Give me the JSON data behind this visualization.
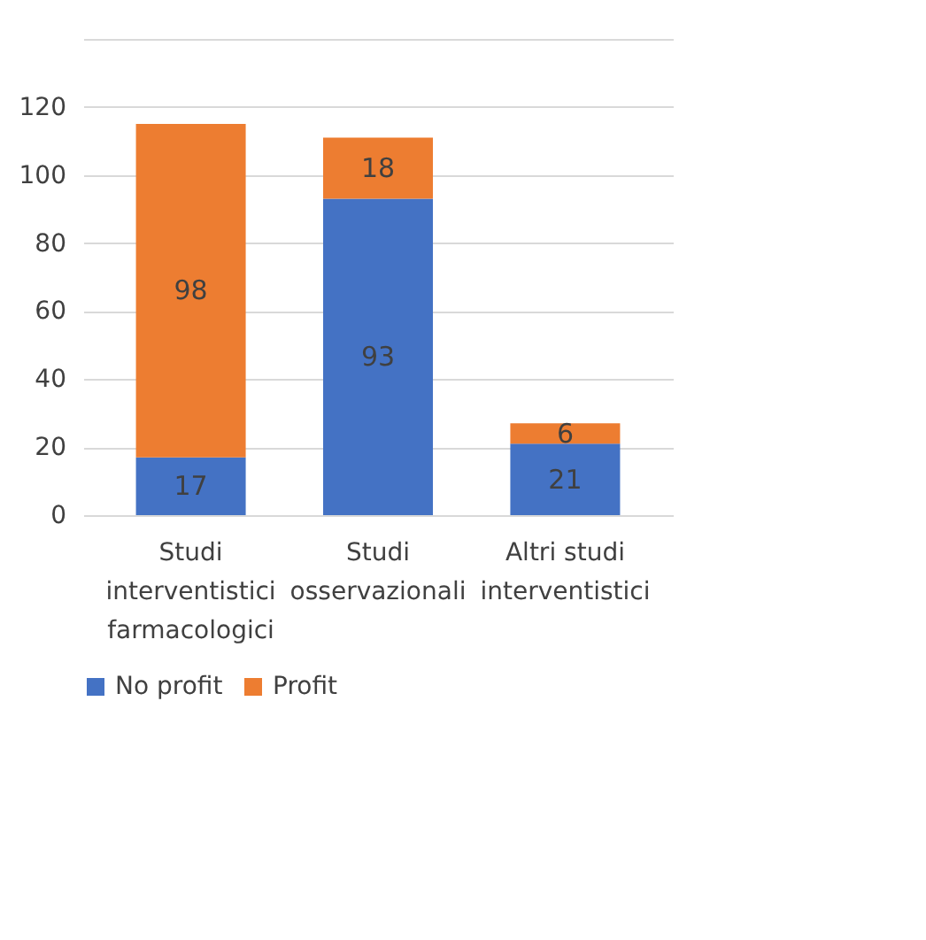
{
  "chart_data": {
    "type": "bar",
    "stacked": true,
    "categories": [
      "Studi\ninterventistici\nfarmacologici",
      "Studi\nosservazionali",
      "Altri studi\ninterventistici"
    ],
    "series": [
      {
        "name": "No profit",
        "color": "#4472c4",
        "values": [
          17,
          93,
          21
        ]
      },
      {
        "name": "Profit",
        "color": "#ed7d31",
        "values": [
          98,
          18,
          6
        ]
      }
    ],
    "ylim": [
      0,
      140
    ],
    "yticks": [
      0,
      20,
      40,
      60,
      80,
      100,
      120,
      {
        "value": 140,
        "label": null
      }
    ],
    "grid": "y",
    "legend": "bottom",
    "data_labels": true
  }
}
